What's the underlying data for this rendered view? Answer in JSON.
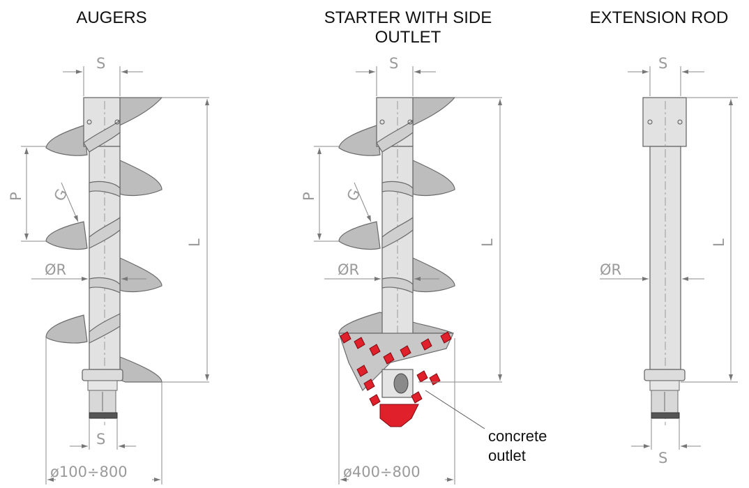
{
  "titles": {
    "augers": "AUGERS",
    "starter": "STARTER WITH SIDE\nOUTLET",
    "extension": "EXTENSION ROD"
  },
  "dimensions": {
    "s": "S",
    "p": "P",
    "g": "G",
    "l": "L",
    "r": "ØR",
    "auger_diameter": "ø100÷800",
    "starter_diameter": "ø400÷800"
  },
  "callout": {
    "text": "concrete\noutlet"
  },
  "colors": {
    "steel_fill": "#e2e2e2",
    "flight_fill": "#bdbdbd",
    "outline": "#6a6a6a",
    "dimension": "#9a9a9a",
    "teeth": "#e0202a"
  }
}
